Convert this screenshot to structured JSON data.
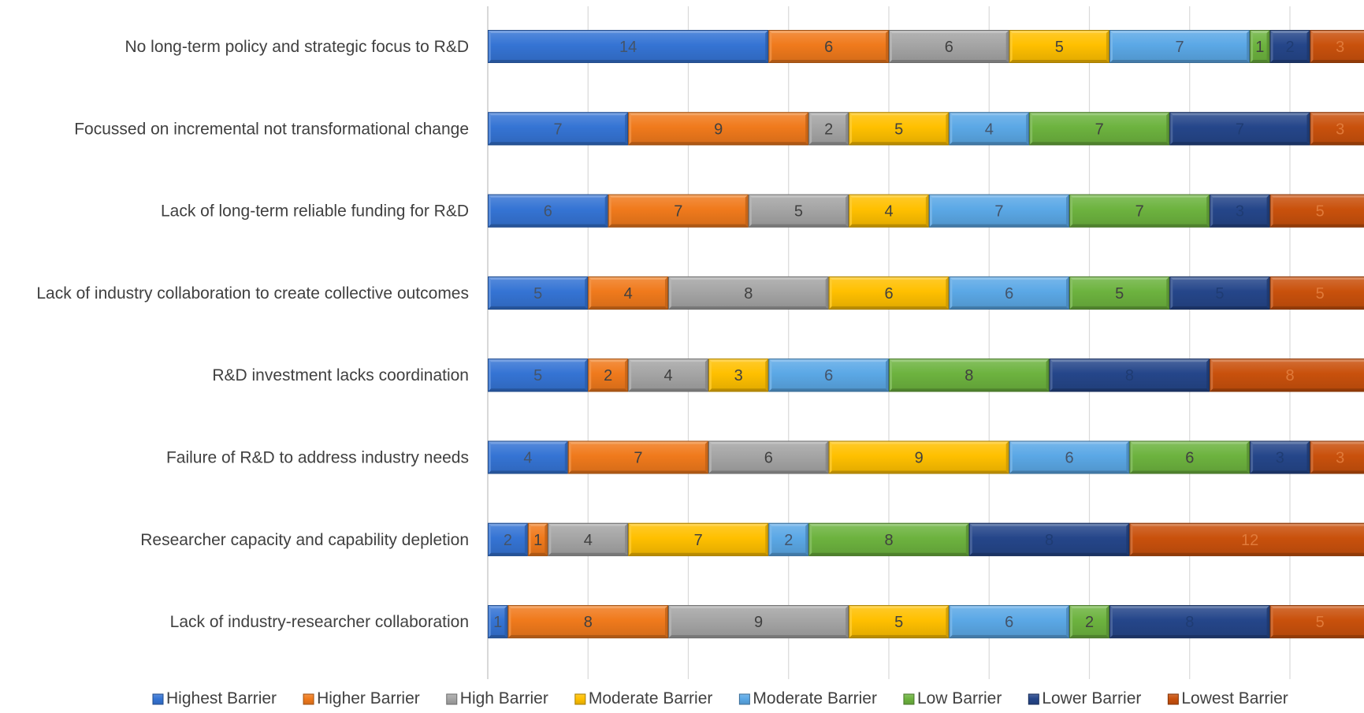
{
  "chart_data": {
    "type": "bar",
    "orientation": "horizontal",
    "stacked": true,
    "title": "",
    "xlabel": "",
    "ylabel": "",
    "xlim": [
      0,
      70
    ],
    "grid": "vertical",
    "legend_position": "bottom",
    "categories": [
      "No long-term policy and strategic focus to R&D",
      "Focussed on incremental not transformational change",
      "Lack of long-term reliable funding for R&D",
      "Lack of industry collaboration to create collective outcomes",
      "R&D investment lacks coordination",
      "Failure of R&D to address industry needs",
      "Researcher capacity and capability depletion",
      "Lack of industry-researcher collaboration"
    ],
    "series": [
      {
        "name": "Highest Barrier",
        "color": "#3574D4",
        "label_color": "#44546A",
        "values": [
          14,
          7,
          6,
          5,
          5,
          4,
          2,
          1
        ]
      },
      {
        "name": "Higher Barrier",
        "color": "#F07A1C",
        "label_color": "#404040",
        "values": [
          6,
          9,
          7,
          4,
          2,
          7,
          1,
          8
        ]
      },
      {
        "name": "High Barrier",
        "color": "#A5A5A5",
        "label_color": "#404040",
        "values": [
          6,
          2,
          5,
          8,
          4,
          6,
          4,
          9
        ]
      },
      {
        "name": "Moderate Barrier",
        "color": "#FFC000",
        "label_color": "#404040",
        "values": [
          5,
          5,
          4,
          6,
          3,
          9,
          7,
          5
        ]
      },
      {
        "name": "Moderate Barrier",
        "color": "#5BA8E6",
        "label_color": "#44546A",
        "values": [
          7,
          4,
          7,
          6,
          6,
          6,
          2,
          6
        ]
      },
      {
        "name": "Low Barrier",
        "color": "#6DB33F",
        "label_color": "#404040",
        "values": [
          1,
          7,
          7,
          5,
          8,
          6,
          8,
          2
        ]
      },
      {
        "name": "Lower Barrier",
        "color": "#25468A",
        "label_color": "#1F3C73",
        "values": [
          2,
          7,
          3,
          5,
          8,
          3,
          8,
          8
        ]
      },
      {
        "name": "Lowest Barrier",
        "color": "#C9510C",
        "label_color": "#E07A3A",
        "values": [
          3,
          3,
          5,
          5,
          8,
          3,
          12,
          5
        ]
      }
    ]
  }
}
